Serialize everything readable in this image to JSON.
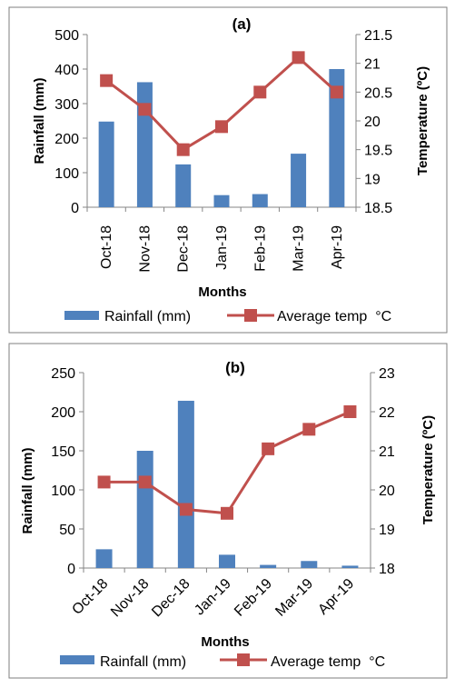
{
  "colors": {
    "bar": "#4F81BD",
    "line": "#C0504D",
    "frame": "#7F7F7F",
    "axis": "#868686"
  },
  "chart_data": [
    {
      "type": "bar",
      "title": "(a)",
      "xlabel": "Months",
      "ylabel": "Rainfall (mm)",
      "y2label": "Temperature (ºC)",
      "categories": [
        "Oct-18",
        "Nov-18",
        "Dec-18",
        "Jan-19",
        "Feb-19",
        "Mar-19",
        "Apr-19"
      ],
      "ylim": [
        0,
        500
      ],
      "yticks": [
        "0",
        "100",
        "200",
        "300",
        "400",
        "500"
      ],
      "y2lim": [
        18.5,
        21.5
      ],
      "y2ticks": [
        "18.5",
        "19",
        "19.5",
        "20",
        "20.5",
        "21",
        "21.5"
      ],
      "grid": false,
      "legend_position": "bottom",
      "series": [
        {
          "name": "Rainfall (mm)",
          "type": "bar",
          "axis": "left",
          "values": [
            248,
            362,
            124,
            35,
            38,
            155,
            400
          ]
        },
        {
          "name": "Average temp  °C",
          "type": "line",
          "axis": "right",
          "values": [
            20.7,
            20.2,
            19.5,
            19.9,
            20.5,
            21.1,
            20.5
          ]
        }
      ]
    },
    {
      "type": "bar",
      "title": "(b)",
      "xlabel": "Months",
      "ylabel": "Rainfall (mm)",
      "y2label": "Temperature (ºC)",
      "categories": [
        "Oct-18",
        "Nov-18",
        "Dec-18",
        "Jan-19",
        "Feb-19",
        "Mar-19",
        "Apr-19"
      ],
      "ylim": [
        0,
        250
      ],
      "yticks": [
        "0",
        "50",
        "100",
        "150",
        "200",
        "250"
      ],
      "y2lim": [
        18,
        23
      ],
      "y2ticks": [
        "18",
        "19",
        "20",
        "21",
        "22",
        "23"
      ],
      "grid": false,
      "legend_position": "bottom",
      "series": [
        {
          "name": "Rainfall (mm)",
          "type": "bar",
          "axis": "left",
          "values": [
            24,
            150,
            214,
            17,
            4,
            9,
            3
          ]
        },
        {
          "name": "Average temp  °C",
          "type": "line",
          "axis": "right",
          "values": [
            20.2,
            20.2,
            19.5,
            19.4,
            21.05,
            21.55,
            22.0
          ]
        }
      ]
    }
  ]
}
